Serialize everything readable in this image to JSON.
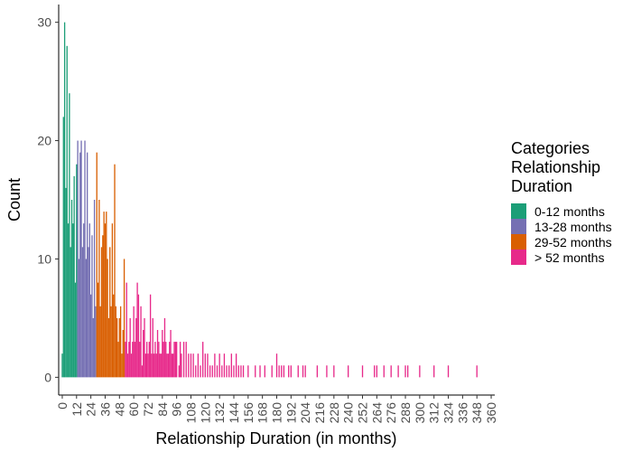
{
  "chart_data": {
    "type": "bar",
    "xlabel": "Relationship Duration (in months)",
    "ylabel": "Count",
    "xlim": [
      -3,
      363
    ],
    "ylim": [
      -1.5,
      31.5
    ],
    "x_ticks": [
      0,
      12,
      24,
      36,
      48,
      60,
      72,
      84,
      96,
      108,
      120,
      132,
      144,
      156,
      168,
      180,
      192,
      204,
      216,
      228,
      240,
      252,
      264,
      276,
      288,
      300,
      312,
      324,
      336,
      348,
      360
    ],
    "x_tick_labels": [
      "0",
      "12",
      "24",
      "36",
      "48",
      "60",
      "72",
      "84",
      "96",
      "108",
      "120",
      "132",
      "144",
      "156",
      "168",
      "180",
      "192",
      "204",
      "216",
      "228",
      "240",
      "252",
      "264",
      "276",
      "288",
      "300",
      "312",
      "324",
      "336",
      "348",
      "360"
    ],
    "y_ticks": [
      0,
      10,
      20,
      30
    ],
    "y_tick_labels": [
      "0",
      "10",
      "20",
      "30"
    ],
    "grid": false,
    "legend": {
      "title_lines": [
        "Categories",
        "Relationship",
        "Duration"
      ],
      "position": "right",
      "entries": [
        "0-12 months",
        "13-28 months",
        "29-52 months",
        "> 52 months"
      ]
    },
    "series": [
      {
        "name": "0-12 months",
        "color": "#1b9e77",
        "x": [
          0,
          1,
          2,
          3,
          4,
          5,
          6,
          7,
          8,
          9,
          10,
          11,
          12
        ],
        "values": [
          2,
          22,
          30,
          16,
          28,
          13,
          24,
          11,
          15,
          13,
          17,
          8,
          18
        ]
      },
      {
        "name": "13-28 months",
        "color": "#7570b3",
        "x": [
          13,
          14,
          15,
          16,
          17,
          18,
          19,
          20,
          21,
          22,
          23,
          24,
          25,
          26,
          27,
          28
        ],
        "values": [
          20,
          10,
          19,
          20,
          11,
          13,
          20,
          10,
          19,
          11,
          13,
          7,
          12,
          5,
          15,
          6
        ]
      },
      {
        "name": "29-52 months",
        "color": "#d95f02",
        "x": [
          29,
          30,
          31,
          32,
          33,
          34,
          35,
          36,
          37,
          38,
          39,
          40,
          41,
          42,
          43,
          44,
          45,
          46,
          47,
          48,
          49,
          50,
          51,
          52
        ],
        "values": [
          19,
          8,
          15,
          6,
          11,
          12,
          14,
          13,
          14,
          10,
          5,
          11,
          6,
          13,
          7,
          18,
          6,
          5,
          3,
          5,
          6,
          2,
          4,
          10
        ]
      },
      {
        "name": "> 52 months",
        "color": "#e7298a",
        "x": [
          53,
          54,
          55,
          56,
          57,
          58,
          59,
          60,
          61,
          62,
          63,
          64,
          65,
          66,
          67,
          68,
          69,
          70,
          71,
          72,
          73,
          74,
          75,
          76,
          77,
          78,
          79,
          80,
          81,
          82,
          83,
          84,
          85,
          86,
          87,
          88,
          89,
          90,
          91,
          92,
          93,
          94,
          95,
          96,
          98,
          99,
          100,
          102,
          104,
          106,
          108,
          110,
          112,
          114,
          116,
          118,
          120,
          122,
          124,
          126,
          128,
          130,
          132,
          134,
          136,
          138,
          140,
          142,
          144,
          146,
          148,
          150,
          152,
          156,
          162,
          166,
          170,
          176,
          180,
          182,
          184,
          186,
          190,
          192,
          198,
          202,
          204,
          214,
          222,
          228,
          240,
          252,
          262,
          264,
          270,
          276,
          282,
          288,
          290,
          300,
          312,
          324,
          348
        ],
        "values": [
          3,
          8,
          2,
          3,
          5,
          2,
          3,
          6,
          3,
          5,
          8,
          7,
          3,
          6,
          1,
          4,
          5,
          2,
          3,
          2,
          3,
          7,
          2,
          5,
          2,
          3,
          2,
          4,
          3,
          2,
          2,
          4,
          3,
          5,
          3,
          2,
          2,
          3,
          4,
          2,
          2,
          3,
          3,
          3,
          1,
          3,
          2,
          3,
          3,
          2,
          2,
          2,
          1,
          2,
          1,
          3,
          2,
          2,
          1,
          1,
          2,
          1,
          2,
          1,
          2,
          1,
          1,
          2,
          1,
          2,
          1,
          1,
          1,
          1,
          1,
          1,
          1,
          1,
          2,
          1,
          1,
          1,
          1,
          1,
          1,
          1,
          1,
          1,
          1,
          1,
          1,
          1,
          1,
          1,
          1,
          1,
          1,
          1,
          1,
          1,
          1,
          1,
          1
        ]
      }
    ]
  }
}
